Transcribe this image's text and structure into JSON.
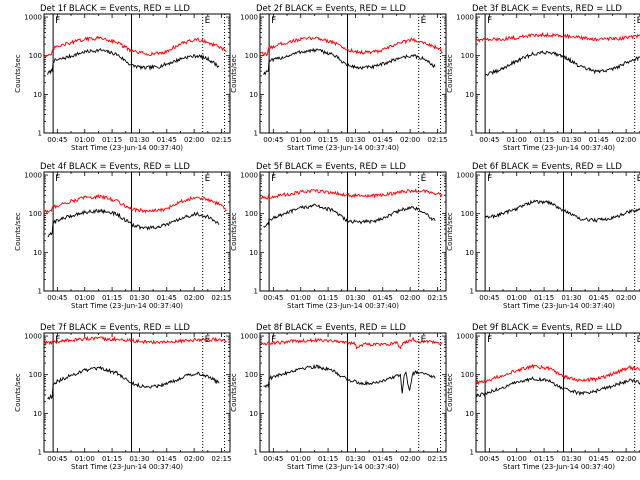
{
  "figure": {
    "x_axis_title": "Start Time (23-Jun-14 00:37:40)",
    "y_axis_title": "Counts/sec",
    "x_tick_labels": [
      "00:45",
      "01:00",
      "01:15",
      "01:30",
      "01:45",
      "02:00",
      "02:15"
    ],
    "y_tick_labels": [
      "1",
      "10",
      "100",
      "1000"
    ]
  },
  "chart_data": [
    {
      "type": "line",
      "title": "Det 1f BLACK = Events, RED = LLD",
      "x_unit": "minutes since 00:37:40",
      "x_range": [
        0,
        102
      ],
      "y_range": [
        1,
        1200
      ],
      "log_y": true,
      "vertical_lines": [
        {
          "x": 5,
          "style": "solid"
        },
        {
          "x": 48,
          "style": "solid"
        },
        {
          "x": 87,
          "style": "dotted"
        },
        {
          "x": 99,
          "style": "dotted"
        }
      ],
      "annotations": [
        {
          "text": "F",
          "x": 5
        },
        {
          "text": "E",
          "x": 87
        }
      ],
      "series": [
        {
          "name": "Events",
          "color": "#000000",
          "x": [
            2,
            4.5,
            5,
            14,
            22,
            31,
            40,
            48,
            55,
            63,
            71,
            77,
            84,
            90,
            93,
            96
          ],
          "values": [
            34,
            42,
            72,
            95,
            125,
            140,
            108,
            56,
            48,
            52,
            70,
            90,
            100,
            82,
            66,
            52
          ]
        },
        {
          "name": "LLD",
          "color": "#ff0000",
          "x": [
            0,
            4,
            5,
            12,
            22,
            31,
            40,
            48,
            57,
            66,
            75,
            84,
            91,
            97,
            100
          ],
          "values": [
            98,
            100,
            155,
            200,
            265,
            290,
            225,
            130,
            110,
            120,
            205,
            265,
            210,
            160,
            125
          ]
        }
      ]
    },
    {
      "type": "line",
      "title": "Det 2f BLACK = Events, RED = LLD",
      "x_unit": "minutes since 00:37:40",
      "x_range": [
        0,
        102
      ],
      "y_range": [
        1,
        1200
      ],
      "log_y": true,
      "vertical_lines": [
        {
          "x": 5,
          "style": "solid"
        },
        {
          "x": 48,
          "style": "solid"
        },
        {
          "x": 87,
          "style": "dotted"
        },
        {
          "x": 99,
          "style": "dotted"
        }
      ],
      "annotations": [
        {
          "text": "F",
          "x": 5
        },
        {
          "text": "E",
          "x": 87
        }
      ],
      "series": [
        {
          "name": "Events",
          "color": "#000000",
          "x": [
            2,
            4.5,
            5,
            14,
            22,
            31,
            40,
            48,
            55,
            63,
            71,
            77,
            84,
            90,
            93,
            96
          ],
          "values": [
            34,
            42,
            72,
            95,
            125,
            140,
            108,
            56,
            48,
            52,
            70,
            90,
            100,
            82,
            66,
            52
          ]
        },
        {
          "name": "LLD",
          "color": "#ff0000",
          "x": [
            0,
            4,
            5,
            12,
            22,
            31,
            40,
            48,
            57,
            66,
            75,
            84,
            91,
            97,
            100
          ],
          "values": [
            112,
            112,
            160,
            205,
            265,
            290,
            225,
            140,
            120,
            130,
            205,
            265,
            210,
            160,
            125
          ]
        }
      ]
    },
    {
      "type": "line",
      "title": "Det 3f BLACK = Events, RED = LLD",
      "x_unit": "minutes since 00:37:40",
      "x_range": [
        0,
        102
      ],
      "y_range": [
        1,
        1200
      ],
      "log_y": true,
      "vertical_lines": [
        {
          "x": 5,
          "style": "solid"
        },
        {
          "x": 48,
          "style": "solid"
        },
        {
          "x": 87,
          "style": "dotted"
        },
        {
          "x": 99,
          "style": "dotted"
        }
      ],
      "annotations": [
        {
          "text": "F",
          "x": 5
        },
        {
          "text": "E",
          "x": 87
        }
      ],
      "series": [
        {
          "name": "Events",
          "color": "#000000",
          "x": [
            5,
            12,
            22,
            31,
            40,
            48,
            57,
            66,
            75,
            84,
            91,
            97
          ],
          "values": [
            32,
            40,
            72,
            110,
            125,
            98,
            52,
            38,
            45,
            72,
            95,
            80
          ]
        },
        {
          "name": "LLD",
          "color": "#ff0000",
          "x": [
            0,
            5,
            12,
            22,
            31,
            40,
            48,
            57,
            66,
            75,
            84,
            91,
            97,
            100
          ],
          "values": [
            255,
            258,
            265,
            290,
            340,
            350,
            330,
            290,
            265,
            270,
            300,
            330,
            310,
            295
          ]
        }
      ]
    },
    {
      "type": "line",
      "title": "Det 4f BLACK = Events, RED = LLD",
      "x_unit": "minutes since 00:37:40",
      "x_range": [
        0,
        102
      ],
      "y_range": [
        1,
        1200
      ],
      "log_y": true,
      "vertical_lines": [
        {
          "x": 5,
          "style": "solid"
        },
        {
          "x": 48,
          "style": "solid"
        },
        {
          "x": 87,
          "style": "dotted"
        },
        {
          "x": 99,
          "style": "dotted"
        }
      ],
      "annotations": [
        {
          "text": "F",
          "x": 5
        },
        {
          "text": "E",
          "x": 87
        }
      ],
      "series": [
        {
          "name": "Events",
          "color": "#000000",
          "x": [
            2,
            4.5,
            5,
            14,
            22,
            31,
            40,
            48,
            55,
            63,
            71,
            77,
            84,
            90,
            93,
            96
          ],
          "values": [
            26,
            30,
            62,
            85,
            110,
            120,
            98,
            52,
            42,
            45,
            60,
            80,
            100,
            82,
            66,
            52
          ]
        },
        {
          "name": "LLD",
          "color": "#ff0000",
          "x": [
            0,
            4,
            5,
            12,
            22,
            31,
            40,
            48,
            57,
            66,
            75,
            84,
            91,
            97,
            100
          ],
          "values": [
            115,
            118,
            150,
            190,
            260,
            280,
            215,
            130,
            115,
            125,
            210,
            270,
            220,
            165,
            125
          ]
        }
      ]
    },
    {
      "type": "line",
      "title": "Det 5f BLACK = Events, RED = LLD",
      "x_unit": "minutes since 00:37:40",
      "x_range": [
        0,
        102
      ],
      "y_range": [
        1,
        1200
      ],
      "log_y": true,
      "vertical_lines": [
        {
          "x": 5,
          "style": "solid"
        },
        {
          "x": 48,
          "style": "solid"
        },
        {
          "x": 87,
          "style": "dotted"
        },
        {
          "x": 99,
          "style": "dotted"
        }
      ],
      "annotations": [
        {
          "text": "F",
          "x": 5
        },
        {
          "text": "E",
          "x": 87
        }
      ],
      "series": [
        {
          "name": "Events",
          "color": "#000000",
          "x": [
            2,
            4.5,
            5,
            14,
            22,
            31,
            40,
            48,
            55,
            63,
            71,
            77,
            84,
            90,
            93,
            96
          ],
          "values": [
            48,
            52,
            72,
            100,
            140,
            165,
            120,
            65,
            60,
            65,
            90,
            125,
            145,
            110,
            80,
            65
          ]
        },
        {
          "name": "LLD",
          "color": "#ff0000",
          "x": [
            0,
            5,
            12,
            22,
            31,
            40,
            48,
            57,
            66,
            75,
            84,
            91,
            97,
            100
          ],
          "values": [
            265,
            265,
            300,
            360,
            390,
            350,
            300,
            285,
            295,
            350,
            400,
            370,
            330,
            300
          ]
        }
      ]
    },
    {
      "type": "line",
      "title": "Det 6f BLACK = Events, RED = LLD",
      "x_unit": "minutes since 00:37:40",
      "x_range": [
        0,
        102
      ],
      "y_range": [
        1,
        1200
      ],
      "log_y": true,
      "vertical_lines": [
        {
          "x": 5,
          "style": "solid"
        },
        {
          "x": 48,
          "style": "solid"
        },
        {
          "x": 87,
          "style": "dotted"
        },
        {
          "x": 99,
          "style": "dotted"
        }
      ],
      "annotations": [
        {
          "text": "F",
          "x": 5
        },
        {
          "text": "E",
          "x": 87
        }
      ],
      "series": [
        {
          "name": "Events",
          "color": "#000000",
          "x": [
            5,
            12,
            22,
            31,
            40,
            48,
            57,
            66,
            75,
            84,
            91,
            97
          ],
          "values": [
            78,
            92,
            135,
            205,
            195,
            125,
            72,
            68,
            78,
            110,
            140,
            110
          ]
        }
      ]
    },
    {
      "type": "line",
      "title": "Det 7f BLACK = Events, RED = LLD",
      "x_unit": "minutes since 00:37:40",
      "x_range": [
        0,
        102
      ],
      "y_range": [
        1,
        1200
      ],
      "log_y": true,
      "vertical_lines": [
        {
          "x": 5,
          "style": "solid"
        },
        {
          "x": 48,
          "style": "solid"
        },
        {
          "x": 87,
          "style": "dotted"
        },
        {
          "x": 99,
          "style": "dotted"
        }
      ],
      "annotations": [
        {
          "text": "F",
          "x": 5
        },
        {
          "text": "E",
          "x": 87
        }
      ],
      "series": [
        {
          "name": "Events",
          "color": "#000000",
          "x": [
            2,
            4.5,
            5,
            14,
            22,
            31,
            40,
            48,
            55,
            63,
            71,
            77,
            84,
            90,
            93,
            96
          ],
          "values": [
            24,
            28,
            60,
            92,
            130,
            145,
            110,
            60,
            48,
            52,
            68,
            92,
            110,
            90,
            75,
            60
          ]
        },
        {
          "name": "LLD",
          "color": "#ff0000",
          "x": [
            0,
            5,
            14,
            22,
            31,
            40,
            48,
            57,
            66,
            75,
            84,
            91,
            97,
            100
          ],
          "values": [
            660,
            680,
            790,
            840,
            860,
            820,
            760,
            700,
            690,
            740,
            800,
            820,
            780,
            740
          ]
        }
      ]
    },
    {
      "type": "line",
      "title": "Det 8f BLACK = Events, RED = LLD",
      "x_unit": "minutes since 00:37:40",
      "x_range": [
        0,
        102
      ],
      "y_range": [
        1,
        1200
      ],
      "log_y": true,
      "vertical_lines": [
        {
          "x": 5,
          "style": "solid"
        },
        {
          "x": 48,
          "style": "solid"
        },
        {
          "x": 87,
          "style": "dotted"
        },
        {
          "x": 99,
          "style": "dotted"
        }
      ],
      "annotations": [
        {
          "text": "F",
          "x": 5
        },
        {
          "text": "E",
          "x": 87
        }
      ],
      "series": [
        {
          "name": "Events",
          "color": "#000000",
          "x": [
            2,
            4.5,
            5,
            14,
            22,
            31,
            40,
            48,
            55,
            63,
            71,
            77,
            78,
            79,
            80,
            82,
            84,
            88,
            93,
            96
          ],
          "values": [
            50,
            55,
            80,
            110,
            145,
            165,
            125,
            75,
            60,
            62,
            80,
            100,
            30,
            95,
            105,
            40,
            110,
            120,
            100,
            80
          ]
        },
        {
          "name": "LLD",
          "color": "#ff0000",
          "x": [
            0,
            5,
            14,
            22,
            31,
            40,
            48,
            52,
            53,
            57,
            66,
            75,
            77,
            79,
            82,
            84,
            88,
            93,
            97,
            100
          ],
          "values": [
            650,
            640,
            700,
            760,
            790,
            760,
            680,
            640,
            500,
            620,
            610,
            650,
            520,
            680,
            760,
            820,
            700,
            720,
            690,
            660
          ]
        }
      ]
    },
    {
      "type": "line",
      "title": "Det 9f BLACK = Events, RED = LLD",
      "x_unit": "minutes since 00:37:40",
      "x_range": [
        0,
        102
      ],
      "y_range": [
        1,
        1200
      ],
      "log_y": true,
      "vertical_lines": [
        {
          "x": 5,
          "style": "solid"
        },
        {
          "x": 48,
          "style": "solid"
        },
        {
          "x": 87,
          "style": "dotted"
        },
        {
          "x": 99,
          "style": "dotted"
        }
      ],
      "annotations": [
        {
          "text": "F",
          "x": 5
        },
        {
          "text": "E",
          "x": 87
        }
      ],
      "series": [
        {
          "name": "Events",
          "color": "#000000",
          "x": [
            0,
            5,
            12,
            22,
            31,
            40,
            48,
            57,
            66,
            75,
            84,
            91,
            97
          ],
          "values": [
            28,
            32,
            42,
            62,
            80,
            70,
            42,
            33,
            38,
            52,
            72,
            62,
            48
          ]
        },
        {
          "name": "LLD",
          "color": "#ff0000",
          "x": [
            0,
            5,
            12,
            22,
            31,
            40,
            48,
            57,
            66,
            75,
            84,
            91,
            97
          ],
          "values": [
            62,
            66,
            88,
            130,
            165,
            145,
            90,
            70,
            76,
            105,
            155,
            130,
            100
          ]
        }
      ]
    }
  ]
}
